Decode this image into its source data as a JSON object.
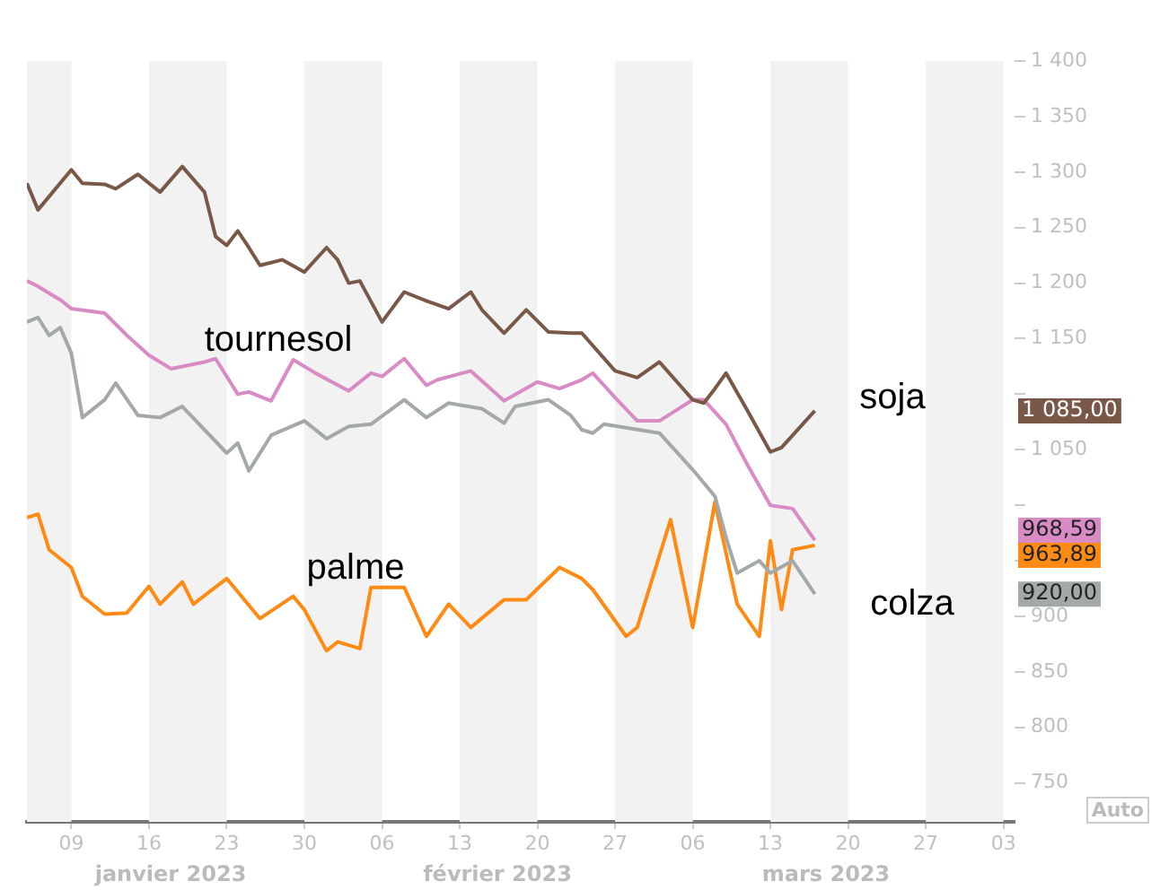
{
  "chart_data": {
    "type": "line",
    "legend": false,
    "grid": false,
    "marker": "none",
    "line_style": "solid",
    "xlim": [
      "2023-01-05",
      "2023-04-04"
    ],
    "xticks": [
      {
        "value": "2023-01-09",
        "label": "09"
      },
      {
        "value": "2023-01-16",
        "label": "16"
      },
      {
        "value": "2023-01-23",
        "label": "23"
      },
      {
        "value": "2023-01-30",
        "label": "30"
      },
      {
        "value": "2023-02-06",
        "label": "06"
      },
      {
        "value": "2023-02-13",
        "label": "13"
      },
      {
        "value": "2023-02-20",
        "label": "20"
      },
      {
        "value": "2023-02-27",
        "label": "27"
      },
      {
        "value": "2023-03-06",
        "label": "06"
      },
      {
        "value": "2023-03-13",
        "label": "13"
      },
      {
        "value": "2023-03-20",
        "label": "20"
      },
      {
        "value": "2023-03-27",
        "label": "27"
      },
      {
        "value": "2023-04-03",
        "label": "03"
      }
    ],
    "ylim": [
      715,
      1400
    ],
    "yticks": [
      {
        "value": 750,
        "label": "750"
      },
      {
        "value": 800,
        "label": "800"
      },
      {
        "value": 850,
        "label": "850"
      },
      {
        "value": 900,
        "label": "900"
      },
      {
        "value": 950,
        "label": null
      },
      {
        "value": 1000,
        "label": null
      },
      {
        "value": 1050,
        "label": "1 050"
      },
      {
        "value": 1100,
        "label": null
      },
      {
        "value": 1150,
        "label": "1 150"
      },
      {
        "value": 1200,
        "label": "1 200"
      },
      {
        "value": 1250,
        "label": "1 250"
      },
      {
        "value": 1300,
        "label": "1 300"
      },
      {
        "value": 1350,
        "label": "1 350"
      },
      {
        "value": 1400,
        "label": "1 400"
      }
    ],
    "bands": [
      {
        "axis": "x",
        "from": "2023-01-05",
        "to": "2023-01-09",
        "color": "#f2f2f2"
      },
      {
        "axis": "x",
        "from": "2023-01-16",
        "to": "2023-01-23",
        "color": "#f2f2f2"
      },
      {
        "axis": "x",
        "from": "2023-01-30",
        "to": "2023-02-06",
        "color": "#f2f2f2"
      },
      {
        "axis": "x",
        "from": "2023-02-13",
        "to": "2023-02-20",
        "color": "#f2f2f2"
      },
      {
        "axis": "x",
        "from": "2023-02-27",
        "to": "2023-03-06",
        "color": "#f2f2f2"
      },
      {
        "axis": "x",
        "from": "2023-03-13",
        "to": "2023-03-20",
        "color": "#f2f2f2"
      },
      {
        "axis": "x",
        "from": "2023-03-27",
        "to": "2023-04-03",
        "color": "#f2f2f2"
      }
    ],
    "series": [
      {
        "name": "soja",
        "color": "#7a5848",
        "x": [
          "2023-01-05",
          "2023-01-06",
          "2023-01-09",
          "2023-01-10",
          "2023-01-12",
          "2023-01-13",
          "2023-01-15",
          "2023-01-17",
          "2023-01-19",
          "2023-01-21",
          "2023-01-22",
          "2023-01-23",
          "2023-01-24",
          "2023-01-25",
          "2023-01-26",
          "2023-01-28",
          "2023-01-30",
          "2023-02-01",
          "2023-02-02",
          "2023-02-03",
          "2023-02-04",
          "2023-02-06",
          "2023-02-08",
          "2023-02-10",
          "2023-02-12",
          "2023-02-14",
          "2023-02-15",
          "2023-02-17",
          "2023-02-19",
          "2023-02-21",
          "2023-02-23",
          "2023-02-24",
          "2023-02-27",
          "2023-03-01",
          "2023-03-03",
          "2023-03-06",
          "2023-03-07",
          "2023-03-08",
          "2023-03-09",
          "2023-03-11",
          "2023-03-13",
          "2023-03-14",
          "2023-03-17"
        ],
        "values": [
          1290,
          1266,
          1302,
          1290,
          1289,
          1285,
          1298,
          1282,
          1305,
          1282,
          1242,
          1234,
          1247,
          1232,
          1216,
          1221,
          1210,
          1232,
          1221,
          1200,
          1202,
          1165,
          1192,
          1184,
          1177,
          1192,
          1176,
          1155,
          1176,
          1156,
          1155,
          1155,
          1121,
          1115,
          1129,
          1095,
          1092,
          1105,
          1119,
          1084,
          1048,
          1052,
          1085
        ]
      },
      {
        "name": "tournesol",
        "color": "#d98bc6",
        "x": [
          "2023-01-05",
          "2023-01-06",
          "2023-01-08",
          "2023-01-09",
          "2023-01-12",
          "2023-01-14",
          "2023-01-16",
          "2023-01-18",
          "2023-01-21",
          "2023-01-22",
          "2023-01-24",
          "2023-01-25",
          "2023-01-27",
          "2023-01-29",
          "2023-01-31",
          "2023-02-03",
          "2023-02-05",
          "2023-02-06",
          "2023-02-08",
          "2023-02-10",
          "2023-02-11",
          "2023-02-14",
          "2023-02-17",
          "2023-02-20",
          "2023-02-22",
          "2023-02-24",
          "2023-02-25",
          "2023-02-27",
          "2023-03-01",
          "2023-03-03",
          "2023-03-06",
          "2023-03-07",
          "2023-03-09",
          "2023-03-11",
          "2023-03-13",
          "2023-03-15",
          "2023-03-17"
        ],
        "values": [
          1202,
          1197,
          1185,
          1177,
          1173,
          1153,
          1135,
          1123,
          1129,
          1132,
          1100,
          1102,
          1094,
          1131,
          1119,
          1103,
          1119,
          1116,
          1132,
          1108,
          1113,
          1121,
          1094,
          1111,
          1105,
          1113,
          1119,
          1097,
          1076,
          1076,
          1095,
          1095,
          1073,
          1035,
          1000,
          997,
          968.59
        ]
      },
      {
        "name": "colza",
        "color": "#a3a8a8",
        "x": [
          "2023-01-05",
          "2023-01-06",
          "2023-01-07",
          "2023-01-08",
          "2023-01-09",
          "2023-01-10",
          "2023-01-12",
          "2023-01-13",
          "2023-01-15",
          "2023-01-17",
          "2023-01-19",
          "2023-01-21",
          "2023-01-23",
          "2023-01-24",
          "2023-01-25",
          "2023-01-27",
          "2023-01-30",
          "2023-02-01",
          "2023-02-03",
          "2023-02-05",
          "2023-02-08",
          "2023-02-10",
          "2023-02-12",
          "2023-02-15",
          "2023-02-17",
          "2023-02-18",
          "2023-02-21",
          "2023-02-23",
          "2023-02-24",
          "2023-02-25",
          "2023-02-26",
          "2023-03-03",
          "2023-03-06",
          "2023-03-08",
          "2023-03-09",
          "2023-03-10",
          "2023-03-12",
          "2023-03-13",
          "2023-03-15",
          "2023-03-17"
        ],
        "values": [
          1165,
          1169,
          1153,
          1160,
          1137,
          1079,
          1095,
          1110,
          1081,
          1079,
          1089,
          1068,
          1047,
          1056,
          1031,
          1063,
          1076,
          1060,
          1071,
          1073,
          1095,
          1079,
          1092,
          1087,
          1074,
          1089,
          1095,
          1081,
          1068,
          1065,
          1073,
          1065,
          1032,
          1008,
          971,
          939,
          950,
          939,
          950,
          920
        ]
      },
      {
        "name": "palme",
        "color": "#ff8a14",
        "x": [
          "2023-01-05",
          "2023-01-06",
          "2023-01-07",
          "2023-01-09",
          "2023-01-10",
          "2023-01-12",
          "2023-01-14",
          "2023-01-16",
          "2023-01-17",
          "2023-01-19",
          "2023-01-20",
          "2023-01-23",
          "2023-01-26",
          "2023-01-29",
          "2023-01-30",
          "2023-02-01",
          "2023-02-02",
          "2023-02-04",
          "2023-02-05",
          "2023-02-08",
          "2023-02-10",
          "2023-02-12",
          "2023-02-14",
          "2023-02-17",
          "2023-02-19",
          "2023-02-22",
          "2023-02-24",
          "2023-02-25",
          "2023-02-28",
          "2023-03-01",
          "2023-03-04",
          "2023-03-06",
          "2023-03-08",
          "2023-03-10",
          "2023-03-12",
          "2023-03-13",
          "2023-03-14",
          "2023-03-15",
          "2023-03-17"
        ],
        "values": [
          989,
          992,
          960,
          944,
          918,
          902,
          903,
          927,
          911,
          931,
          911,
          934,
          898,
          918,
          906,
          869,
          877,
          871,
          926,
          926,
          882,
          911,
          890,
          915,
          915,
          944,
          934,
          924,
          882,
          890,
          987,
          890,
          1003,
          911,
          882,
          968,
          906,
          960,
          963.89
        ]
      }
    ],
    "annotations": [
      "janvier 2023",
      "février 2023",
      "mars 2023",
      "Auto",
      "1 085,00",
      "968,59",
      "920,00",
      "963,89"
    ]
  }
}
